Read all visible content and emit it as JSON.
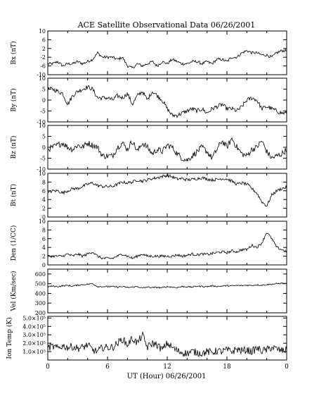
{
  "title": "ACE Satellite Observational Data   06/26/2001",
  "xlabel": "UT (Hour)   06/26/2001",
  "x_ticks": [
    "0",
    "6",
    "12",
    "18",
    "0"
  ],
  "colors": {
    "line": "#000000",
    "axis": "#000000",
    "background": "#ffffff"
  },
  "chart_data": [
    {
      "type": "line",
      "ylabel": "Bx (nT)",
      "ylim": [
        -10,
        10
      ],
      "y_ticks": [
        {
          "value": 10,
          "label": "10"
        },
        {
          "value": 6,
          "label": "6"
        },
        {
          "value": 2,
          "label": "2"
        },
        {
          "value": -2,
          "label": "-2"
        },
        {
          "value": -6,
          "label": "-6"
        },
        {
          "value": -10,
          "label": "-10"
        }
      ],
      "x": [
        0,
        0.5,
        1,
        1.5,
        2,
        2.5,
        3,
        3.5,
        4,
        4.5,
        5,
        5.5,
        6,
        6.5,
        7,
        7.5,
        8,
        8.5,
        9,
        9.5,
        10,
        10.5,
        11,
        11.5,
        12,
        12.5,
        13,
        13.5,
        14,
        14.5,
        15,
        15.5,
        16,
        16.5,
        17,
        17.5,
        18,
        18.5,
        19,
        19.5,
        20,
        20.5,
        21,
        21.5,
        22,
        22.5,
        23,
        23.5,
        24
      ],
      "values": [
        -5,
        -5,
        -4,
        -6,
        -5,
        -5,
        -4,
        -5,
        -4,
        -3,
        0,
        -2,
        -2,
        -2,
        -3,
        -2,
        -6,
        -7,
        -5,
        -6,
        -5,
        -4,
        -6,
        -4,
        -5,
        -3,
        -4,
        -5,
        -5,
        -4,
        -4,
        -5,
        -4,
        -5,
        -3,
        -3,
        -4,
        -2,
        -2,
        0,
        1,
        0,
        0,
        -1,
        -1,
        -2,
        0,
        1,
        1
      ],
      "noise": 1.3
    },
    {
      "type": "line",
      "ylabel": "By (nT)",
      "ylim": [
        -10,
        10
      ],
      "y_ticks": [
        {
          "value": 10,
          "label": "10"
        },
        {
          "value": 5,
          "label": "5"
        },
        {
          "value": 0,
          "label": "0"
        },
        {
          "value": -5,
          "label": "-5"
        },
        {
          "value": -10,
          "label": "-10"
        }
      ],
      "x": [
        0,
        0.5,
        1,
        1.5,
        2,
        2.5,
        3,
        3.5,
        4,
        4.5,
        5,
        5.5,
        6,
        6.5,
        7,
        7.5,
        8,
        8.5,
        9,
        9.5,
        10,
        10.5,
        11,
        11.5,
        12,
        12.5,
        13,
        13.5,
        14,
        14.5,
        15,
        15.5,
        16,
        16.5,
        17,
        17.5,
        18,
        18.5,
        19,
        19.5,
        20,
        20.5,
        21,
        21.5,
        22,
        22.5,
        23,
        23.5,
        24
      ],
      "values": [
        5,
        5,
        4,
        3,
        -2,
        2,
        4,
        5,
        6,
        5,
        1,
        1,
        1,
        0,
        2,
        1,
        3,
        -2,
        2,
        4,
        0,
        4,
        2,
        0,
        -4,
        -7,
        -7,
        -6,
        -5,
        -4,
        -5,
        -4,
        -6,
        -4,
        -3,
        -2,
        -4,
        -4,
        -5,
        -3,
        0,
        1,
        0,
        -4,
        -3,
        -4,
        -5,
        -6,
        -6
      ],
      "noise": 2.0
    },
    {
      "type": "line",
      "ylabel": "Bz (nT)",
      "ylim": [
        -10,
        10
      ],
      "y_ticks": [
        {
          "value": 10,
          "label": "10"
        },
        {
          "value": 5,
          "label": "5"
        },
        {
          "value": 0,
          "label": "0"
        },
        {
          "value": -5,
          "label": "-5"
        },
        {
          "value": -10,
          "label": "-10"
        }
      ],
      "x": [
        0,
        0.5,
        1,
        1.5,
        2,
        2.5,
        3,
        3.5,
        4,
        4.5,
        5,
        5.5,
        6,
        6.5,
        7,
        7.5,
        8,
        8.5,
        9,
        9.5,
        10,
        10.5,
        11,
        11.5,
        12,
        12.5,
        13,
        13.5,
        14,
        14.5,
        15,
        15.5,
        16,
        16.5,
        17,
        17.5,
        18,
        18.5,
        19,
        19.5,
        20,
        20.5,
        21,
        21.5,
        22,
        22.5,
        23,
        23.5,
        24
      ],
      "values": [
        -1,
        0,
        1,
        2,
        0,
        -1,
        1,
        0,
        2,
        1,
        0,
        -4,
        -4,
        -4,
        0,
        2,
        -1,
        3,
        -2,
        2,
        0,
        -3,
        -1,
        -2,
        1,
        0,
        -3,
        -5,
        -6,
        -4,
        -2,
        0,
        -2,
        -5,
        -1,
        3,
        0,
        4,
        0,
        -3,
        -4,
        -1,
        0,
        3,
        -2,
        -5,
        -4,
        -3,
        -1
      ],
      "noise": 2.8
    },
    {
      "type": "line",
      "ylabel": "Bt (nT)",
      "ylim": [
        0,
        10
      ],
      "y_ticks": [
        {
          "value": 10,
          "label": "10"
        },
        {
          "value": 8,
          "label": "8"
        },
        {
          "value": 6,
          "label": "6"
        },
        {
          "value": 4,
          "label": "4"
        },
        {
          "value": 2,
          "label": "2"
        },
        {
          "value": 0,
          "label": "0"
        }
      ],
      "x": [
        0,
        0.5,
        1,
        1.5,
        2,
        2.5,
        3,
        3.5,
        4,
        4.5,
        5,
        5.5,
        6,
        6.5,
        7,
        7.5,
        8,
        8.5,
        9,
        9.5,
        10,
        10.5,
        11,
        11.5,
        12,
        12.5,
        13,
        13.5,
        14,
        14.5,
        15,
        15.5,
        16,
        16.5,
        17,
        17.5,
        18,
        18.5,
        19,
        19.5,
        20,
        20.5,
        21,
        21.5,
        22,
        22.5,
        23,
        23.5,
        24
      ],
      "values": [
        5.5,
        6,
        6,
        5.5,
        6,
        6.5,
        6.5,
        7,
        7.5,
        7.8,
        7.2,
        7,
        7,
        7,
        7.5,
        8,
        7.8,
        8,
        8.5,
        8.2,
        8.5,
        8.8,
        9,
        9.3,
        9.5,
        9.2,
        8.7,
        8.8,
        8.5,
        8.6,
        8.8,
        9,
        8.7,
        8.5,
        8.6,
        8.8,
        8.7,
        8.2,
        7.5,
        7.8,
        7.5,
        6.5,
        5.5,
        3.5,
        2.5,
        5,
        6,
        6.5,
        6.8
      ],
      "noise": 0.7
    },
    {
      "type": "line",
      "ylabel": "Den (1/CC)",
      "ylim": [
        0,
        10
      ],
      "y_ticks": [
        {
          "value": 10,
          "label": "10"
        },
        {
          "value": 8,
          "label": "8"
        },
        {
          "value": 6,
          "label": "6"
        },
        {
          "value": 4,
          "label": "4"
        },
        {
          "value": 2,
          "label": "2"
        },
        {
          "value": 0,
          "label": "0"
        }
      ],
      "x": [
        0,
        0.5,
        1,
        1.5,
        2,
        2.5,
        3,
        3.5,
        4,
        4.5,
        5,
        5.5,
        6,
        6.5,
        7,
        7.5,
        8,
        8.5,
        9,
        9.5,
        10,
        10.5,
        11,
        11.5,
        12,
        12.5,
        13,
        13.5,
        14,
        14.5,
        15,
        15.5,
        16,
        16.5,
        17,
        17.5,
        18,
        18.5,
        19,
        19.5,
        20,
        20.5,
        21,
        21.5,
        22,
        22.5,
        23,
        23.5,
        24
      ],
      "values": [
        2,
        2,
        2,
        2,
        2.5,
        2,
        2.5,
        2,
        2.5,
        3,
        2,
        1.5,
        1.5,
        1.5,
        2,
        2.5,
        2,
        1.5,
        2,
        2.5,
        2,
        2,
        2,
        2,
        2,
        2,
        2.3,
        2,
        2.2,
        2.5,
        2.3,
        2.5,
        2.4,
        2.6,
        2.8,
        3,
        2.8,
        3.2,
        3,
        3.5,
        3.5,
        4.5,
        4,
        5,
        7.5,
        6,
        4,
        3.5,
        3
      ],
      "noise": 0.6
    },
    {
      "type": "line",
      "ylabel": "Vel (Km/sec)",
      "ylim": [
        200,
        650
      ],
      "y_ticks": [
        {
          "value": 600,
          "label": "600"
        },
        {
          "value": 500,
          "label": "500"
        },
        {
          "value": 400,
          "label": "400"
        },
        {
          "value": 300,
          "label": "300"
        },
        {
          "value": 200,
          "label": "200"
        }
      ],
      "x": [
        0,
        0.5,
        1,
        1.5,
        2,
        2.5,
        3,
        3.5,
        4,
        4.5,
        5,
        5.5,
        6,
        6.5,
        7,
        7.5,
        8,
        8.5,
        9,
        9.5,
        10,
        10.5,
        11,
        11.5,
        12,
        12.5,
        13,
        13.5,
        14,
        14.5,
        15,
        15.5,
        16,
        16.5,
        17,
        17.5,
        18,
        18.5,
        19,
        19.5,
        20,
        20.5,
        21,
        21.5,
        22,
        22.5,
        23,
        23.5,
        24
      ],
      "values": [
        470,
        475,
        470,
        478,
        482,
        475,
        485,
        490,
        495,
        500,
        470,
        470,
        470,
        470,
        465,
        470,
        460,
        465,
        470,
        455,
        465,
        460,
        462,
        458,
        470,
        465,
        460,
        470,
        468,
        465,
        475,
        472,
        470,
        478,
        472,
        475,
        480,
        478,
        482,
        480,
        485,
        482,
        488,
        485,
        490,
        495,
        500,
        505,
        500
      ],
      "noise": 14
    },
    {
      "type": "line",
      "ylabel": "Ion Temp (K)",
      "ylim": [
        0,
        520000
      ],
      "y_ticks": [
        {
          "value": 500000,
          "label": "5.0×10⁵"
        },
        {
          "value": 400000,
          "label": "4.0×10⁵"
        },
        {
          "value": 300000,
          "label": "3.0×10⁵"
        },
        {
          "value": 200000,
          "label": "2.0×10⁵"
        },
        {
          "value": 100000,
          "label": "1.0×10⁵"
        }
      ],
      "x": [
        0,
        0.5,
        1,
        1.5,
        2,
        2.5,
        3,
        3.5,
        4,
        4.5,
        5,
        5.5,
        6,
        6.5,
        7,
        7.5,
        8,
        8.5,
        9,
        9.5,
        10,
        10.5,
        11,
        11.5,
        12,
        12.5,
        13,
        13.5,
        14,
        14.5,
        15,
        15.5,
        16,
        16.5,
        17,
        17.5,
        18,
        18.5,
        19,
        19.5,
        20,
        20.5,
        21,
        21.5,
        22,
        22.5,
        23,
        23.5,
        24
      ],
      "values": [
        150000,
        160000,
        140000,
        170000,
        150000,
        160000,
        140000,
        150000,
        180000,
        120000,
        100000,
        150000,
        150000,
        150000,
        200000,
        250000,
        180000,
        260000,
        200000,
        300000,
        150000,
        200000,
        180000,
        120000,
        200000,
        150000,
        110000,
        90000,
        80000,
        100000,
        90000,
        80000,
        100000,
        90000,
        110000,
        100000,
        120000,
        100000,
        130000,
        110000,
        120000,
        100000,
        140000,
        110000,
        120000,
        150000,
        130000,
        110000,
        120000
      ],
      "noise": 90000
    }
  ]
}
